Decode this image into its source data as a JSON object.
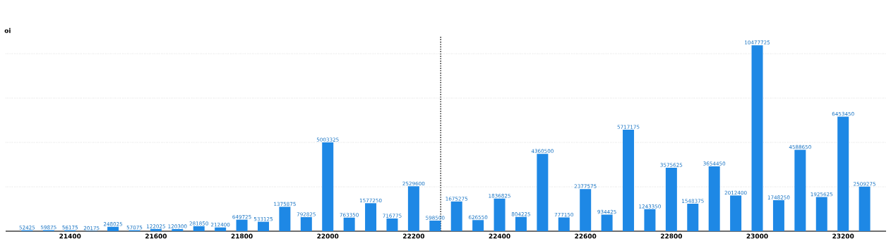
{
  "chart_data": {
    "type": "bar",
    "ylabel": "oi",
    "x": [
      21300,
      21350,
      21400,
      21450,
      21500,
      21550,
      21600,
      21650,
      21700,
      21750,
      21800,
      21850,
      21900,
      21950,
      22000,
      22050,
      22100,
      22150,
      22200,
      22250,
      22300,
      22350,
      22400,
      22450,
      22500,
      22550,
      22600,
      22650,
      22700,
      22750,
      22800,
      22850,
      22900,
      22950,
      23000,
      23050,
      23100,
      23150,
      23200,
      23250
    ],
    "values": [
      52425,
      59875,
      56175,
      20175,
      248025,
      57075,
      122025,
      120300,
      281850,
      212400,
      649725,
      533125,
      1375875,
      792825,
      5003325,
      763350,
      1577250,
      716775,
      2529600,
      598500,
      1675275,
      626550,
      1836825,
      804225,
      4360500,
      777150,
      2377575,
      934425,
      5717175,
      1243350,
      3575625,
      1548375,
      3654450,
      2012400,
      10477725,
      1748250,
      4588650,
      1925625,
      6453450,
      2509275
    ],
    "color": "#1e88e5",
    "data_labels": true,
    "xlim": [
      21250,
      23300
    ],
    "xticks": [
      21400,
      21600,
      21800,
      22000,
      22200,
      22400,
      22600,
      22800,
      23000,
      23200
    ],
    "ylim": [
      0,
      11000000
    ],
    "yticks": [
      {
        "value": 2500000,
        "label": null
      },
      {
        "value": 5000000,
        "label": null
      },
      {
        "value": 7500000,
        "label": null
      },
      {
        "value": 10000000,
        "label": null
      }
    ],
    "tick_labels": "x",
    "grid": "y",
    "ref_lines": [
      {
        "axis": "x",
        "value": 22263,
        "color": "#000000",
        "line_style": "dotted"
      }
    ]
  }
}
